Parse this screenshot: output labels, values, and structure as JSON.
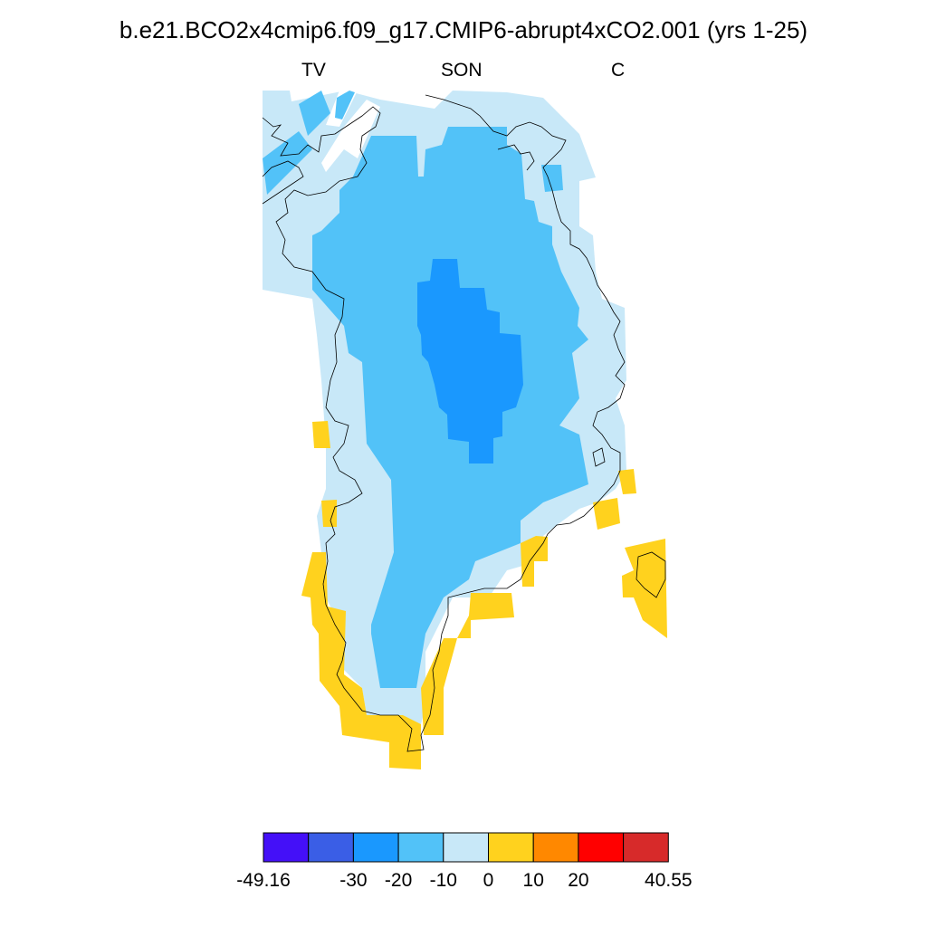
{
  "header": {
    "title": "b.e21.BCO2x4cmip6.f09_g17.CMIP6-abrupt4xCO2.001 (yrs 1-25)",
    "left_label": "TV",
    "center_label": "SON",
    "right_label": "C"
  },
  "colorbar": {
    "colors": [
      "#4410f8",
      "#3a5ee6",
      "#1a98fe",
      "#52c2f8",
      "#c8e8f8",
      "#ffd21e",
      "#ff8800",
      "#ff0000",
      "#d72a2a"
    ],
    "tick_labels": [
      "-49.16",
      "-30",
      "-20",
      "-10",
      "0",
      "10",
      "20",
      "40.55"
    ],
    "ticks": [
      -49.16,
      -30,
      -20,
      -10,
      0,
      10,
      20,
      40.55
    ]
  },
  "legend_colors": {
    "very_strong_cooling": "#1a98fe",
    "strong_cooling": "#52c2f8",
    "mild_cooling": "#c8e8f8",
    "mild_warming": "#ffd21e"
  }
}
